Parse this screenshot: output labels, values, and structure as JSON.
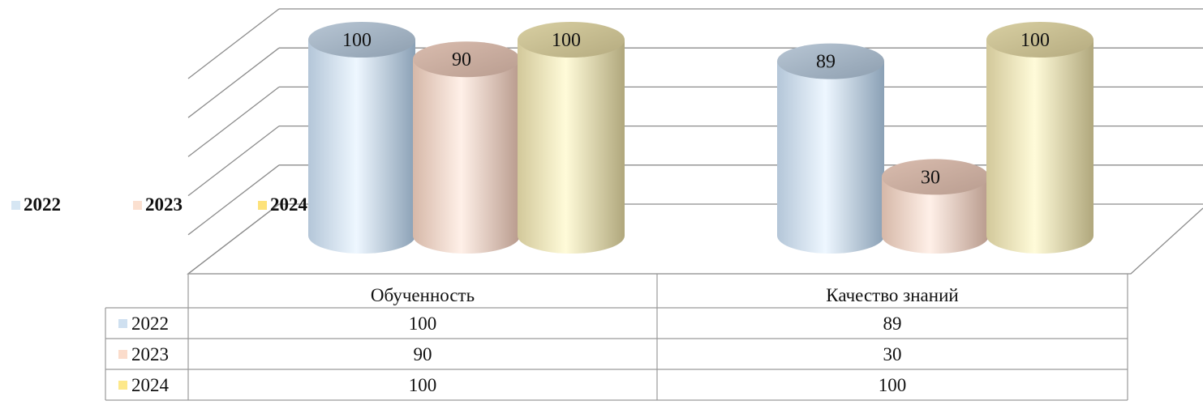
{
  "chart_data": {
    "type": "bar",
    "style": "3d-cylinder",
    "categories": [
      "Обученность",
      "Качество знаний"
    ],
    "series": [
      {
        "name": "2022",
        "values": [
          100,
          89
        ],
        "color": "#dce9f5"
      },
      {
        "name": "2023",
        "values": [
          90,
          30
        ],
        "color": "#fbe3d6"
      },
      {
        "name": "2024",
        "values": [
          100,
          100
        ],
        "color": "#fdf5c8"
      }
    ],
    "ylim": [
      0,
      100
    ],
    "grid": true,
    "legend_position": "left",
    "data_table": true
  }
}
